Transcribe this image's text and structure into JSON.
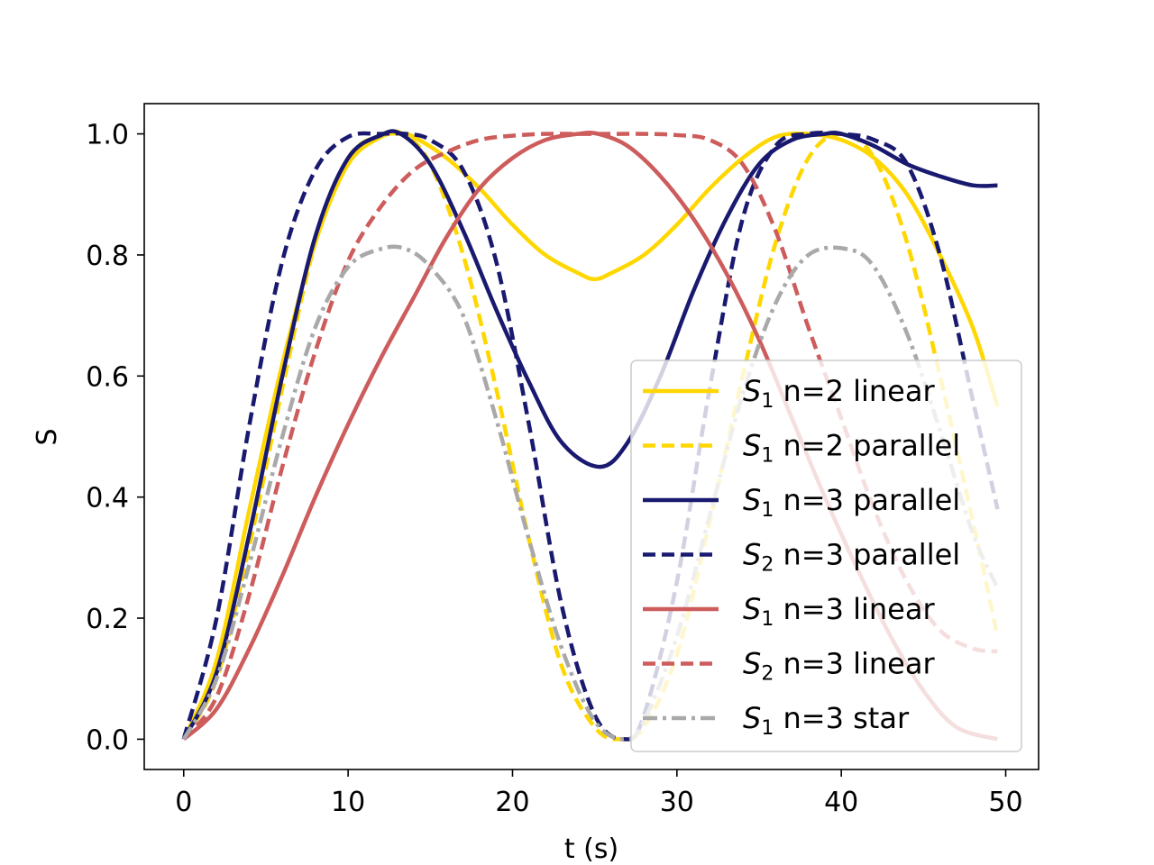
{
  "chart_data": {
    "type": "line",
    "title": "",
    "xlabel": "t (s)",
    "ylabel": "S",
    "xlim": [
      -2.4,
      52
    ],
    "ylim": [
      -0.05,
      1.05
    ],
    "xticks": [
      0,
      10,
      20,
      30,
      40,
      50
    ],
    "yticks": [
      0.0,
      0.2,
      0.4,
      0.6,
      0.8,
      1.0
    ],
    "xtick_labels": [
      "0",
      "10",
      "20",
      "30",
      "40",
      "50"
    ],
    "ytick_labels": [
      "0.0",
      "0.2",
      "0.4",
      "0.6",
      "0.8",
      "1.0"
    ],
    "grid": false,
    "legend_position": "lower-right",
    "series": [
      {
        "name_main": "S",
        "name_sub": "1",
        "name_rest": " n=2 linear",
        "color": "#ffd700",
        "style": "solid",
        "x": [
          0,
          2,
          4,
          6,
          8,
          10,
          12,
          13.2,
          14,
          16,
          18,
          20,
          22,
          24,
          25,
          26,
          28,
          30,
          32,
          34,
          36,
          38,
          40,
          42,
          44,
          46,
          48,
          49.5
        ],
        "y": [
          0,
          0.13,
          0.38,
          0.62,
          0.82,
          0.95,
          0.995,
          1.0,
          0.995,
          0.96,
          0.91,
          0.85,
          0.8,
          0.77,
          0.76,
          0.77,
          0.8,
          0.85,
          0.91,
          0.96,
          0.995,
          1.0,
          0.99,
          0.96,
          0.9,
          0.8,
          0.68,
          0.55
        ]
      },
      {
        "name_main": "S",
        "name_sub": "1",
        "name_rest": " n=2 parallel",
        "color": "#ffd700",
        "style": "dashed",
        "x": [
          0,
          2,
          4,
          6,
          8,
          10,
          12,
          13.3,
          15,
          17,
          19,
          21,
          23,
          25,
          26.5,
          28,
          30,
          32,
          34,
          36,
          38,
          40,
          42,
          44,
          46,
          48,
          49.5
        ],
        "y": [
          0,
          0.1,
          0.32,
          0.58,
          0.82,
          0.96,
          0.998,
          1.0,
          0.95,
          0.8,
          0.58,
          0.33,
          0.12,
          0.02,
          0.0,
          0.02,
          0.14,
          0.36,
          0.6,
          0.82,
          0.96,
          1.0,
          0.96,
          0.82,
          0.6,
          0.36,
          0.17
        ]
      },
      {
        "name_main": "S",
        "name_sub": "1",
        "name_rest": " n=3 parallel",
        "color": "#191970",
        "style": "solid",
        "x": [
          0,
          2,
          4,
          6,
          8,
          10,
          12,
          13.2,
          15,
          17,
          19,
          21,
          23,
          25.3,
          27,
          29,
          31,
          33,
          35,
          37,
          39,
          40,
          42,
          44,
          46,
          48,
          49.5
        ],
        "y": [
          0,
          0.11,
          0.34,
          0.6,
          0.83,
          0.96,
          0.998,
          1.0,
          0.95,
          0.84,
          0.71,
          0.59,
          0.49,
          0.45,
          0.49,
          0.6,
          0.74,
          0.86,
          0.95,
          0.99,
          1.0,
          1.0,
          0.98,
          0.95,
          0.93,
          0.915,
          0.915
        ]
      },
      {
        "name_main": "S",
        "name_sub": "2",
        "name_rest": " n=3 parallel",
        "color": "#191970",
        "style": "dashed",
        "x": [
          0,
          2,
          4,
          6,
          8,
          10,
          12,
          13.5,
          15,
          17,
          19,
          21,
          23,
          25,
          26.8,
          28,
          30,
          32,
          34,
          36,
          38,
          40,
          42,
          44,
          46,
          48,
          49.5
        ],
        "y": [
          0,
          0.2,
          0.52,
          0.79,
          0.94,
          0.995,
          1.0,
          1.0,
          0.99,
          0.94,
          0.79,
          0.52,
          0.22,
          0.04,
          0.0,
          0.04,
          0.26,
          0.58,
          0.86,
          0.98,
          1.0,
          1.0,
          0.99,
          0.95,
          0.8,
          0.56,
          0.38
        ]
      },
      {
        "name_main": "S",
        "name_sub": "1",
        "name_rest": " n=3 linear",
        "color": "#cd5c5c",
        "style": "solid",
        "x": [
          0,
          2,
          4,
          6,
          8,
          10,
          12,
          14,
          16,
          18,
          20,
          22,
          24,
          25.2,
          27,
          29,
          31,
          33,
          35,
          37,
          39,
          41,
          43,
          45,
          47,
          49.5
        ],
        "y": [
          0,
          0.05,
          0.15,
          0.27,
          0.4,
          0.52,
          0.63,
          0.73,
          0.83,
          0.91,
          0.96,
          0.99,
          1.0,
          1.0,
          0.98,
          0.93,
          0.86,
          0.77,
          0.66,
          0.53,
          0.4,
          0.28,
          0.17,
          0.08,
          0.02,
          0.0
        ]
      },
      {
        "name_main": "S",
        "name_sub": "2",
        "name_rest": " n=3 linear",
        "color": "#cd5c5c",
        "style": "dashed",
        "x": [
          0,
          2,
          4,
          6,
          8,
          10,
          12,
          14,
          16,
          18,
          20,
          22,
          24,
          26,
          28,
          30,
          32,
          34,
          36,
          38,
          40,
          42,
          44,
          46,
          48,
          49.5
        ],
        "y": [
          0,
          0.07,
          0.24,
          0.45,
          0.64,
          0.79,
          0.88,
          0.94,
          0.97,
          0.99,
          0.997,
          1.0,
          1.0,
          1.0,
          1.0,
          0.998,
          0.99,
          0.95,
          0.84,
          0.68,
          0.53,
          0.38,
          0.26,
          0.18,
          0.15,
          0.145
        ]
      },
      {
        "name_main": "S",
        "name_sub": "1",
        "name_rest": " n=3 star",
        "color": "#a9a9a9",
        "style": "dashdot",
        "x": [
          0,
          2,
          4,
          6,
          8,
          10,
          12,
          13.5,
          15,
          17,
          19,
          21,
          23,
          25,
          26.8,
          28,
          30,
          32,
          34,
          36,
          38,
          40.3,
          42,
          44,
          46,
          48,
          49.5
        ],
        "y": [
          0,
          0.1,
          0.29,
          0.5,
          0.68,
          0.78,
          0.81,
          0.81,
          0.78,
          0.7,
          0.53,
          0.33,
          0.15,
          0.03,
          0.0,
          0.03,
          0.17,
          0.37,
          0.57,
          0.72,
          0.8,
          0.81,
          0.78,
          0.67,
          0.51,
          0.34,
          0.25
        ]
      }
    ]
  }
}
